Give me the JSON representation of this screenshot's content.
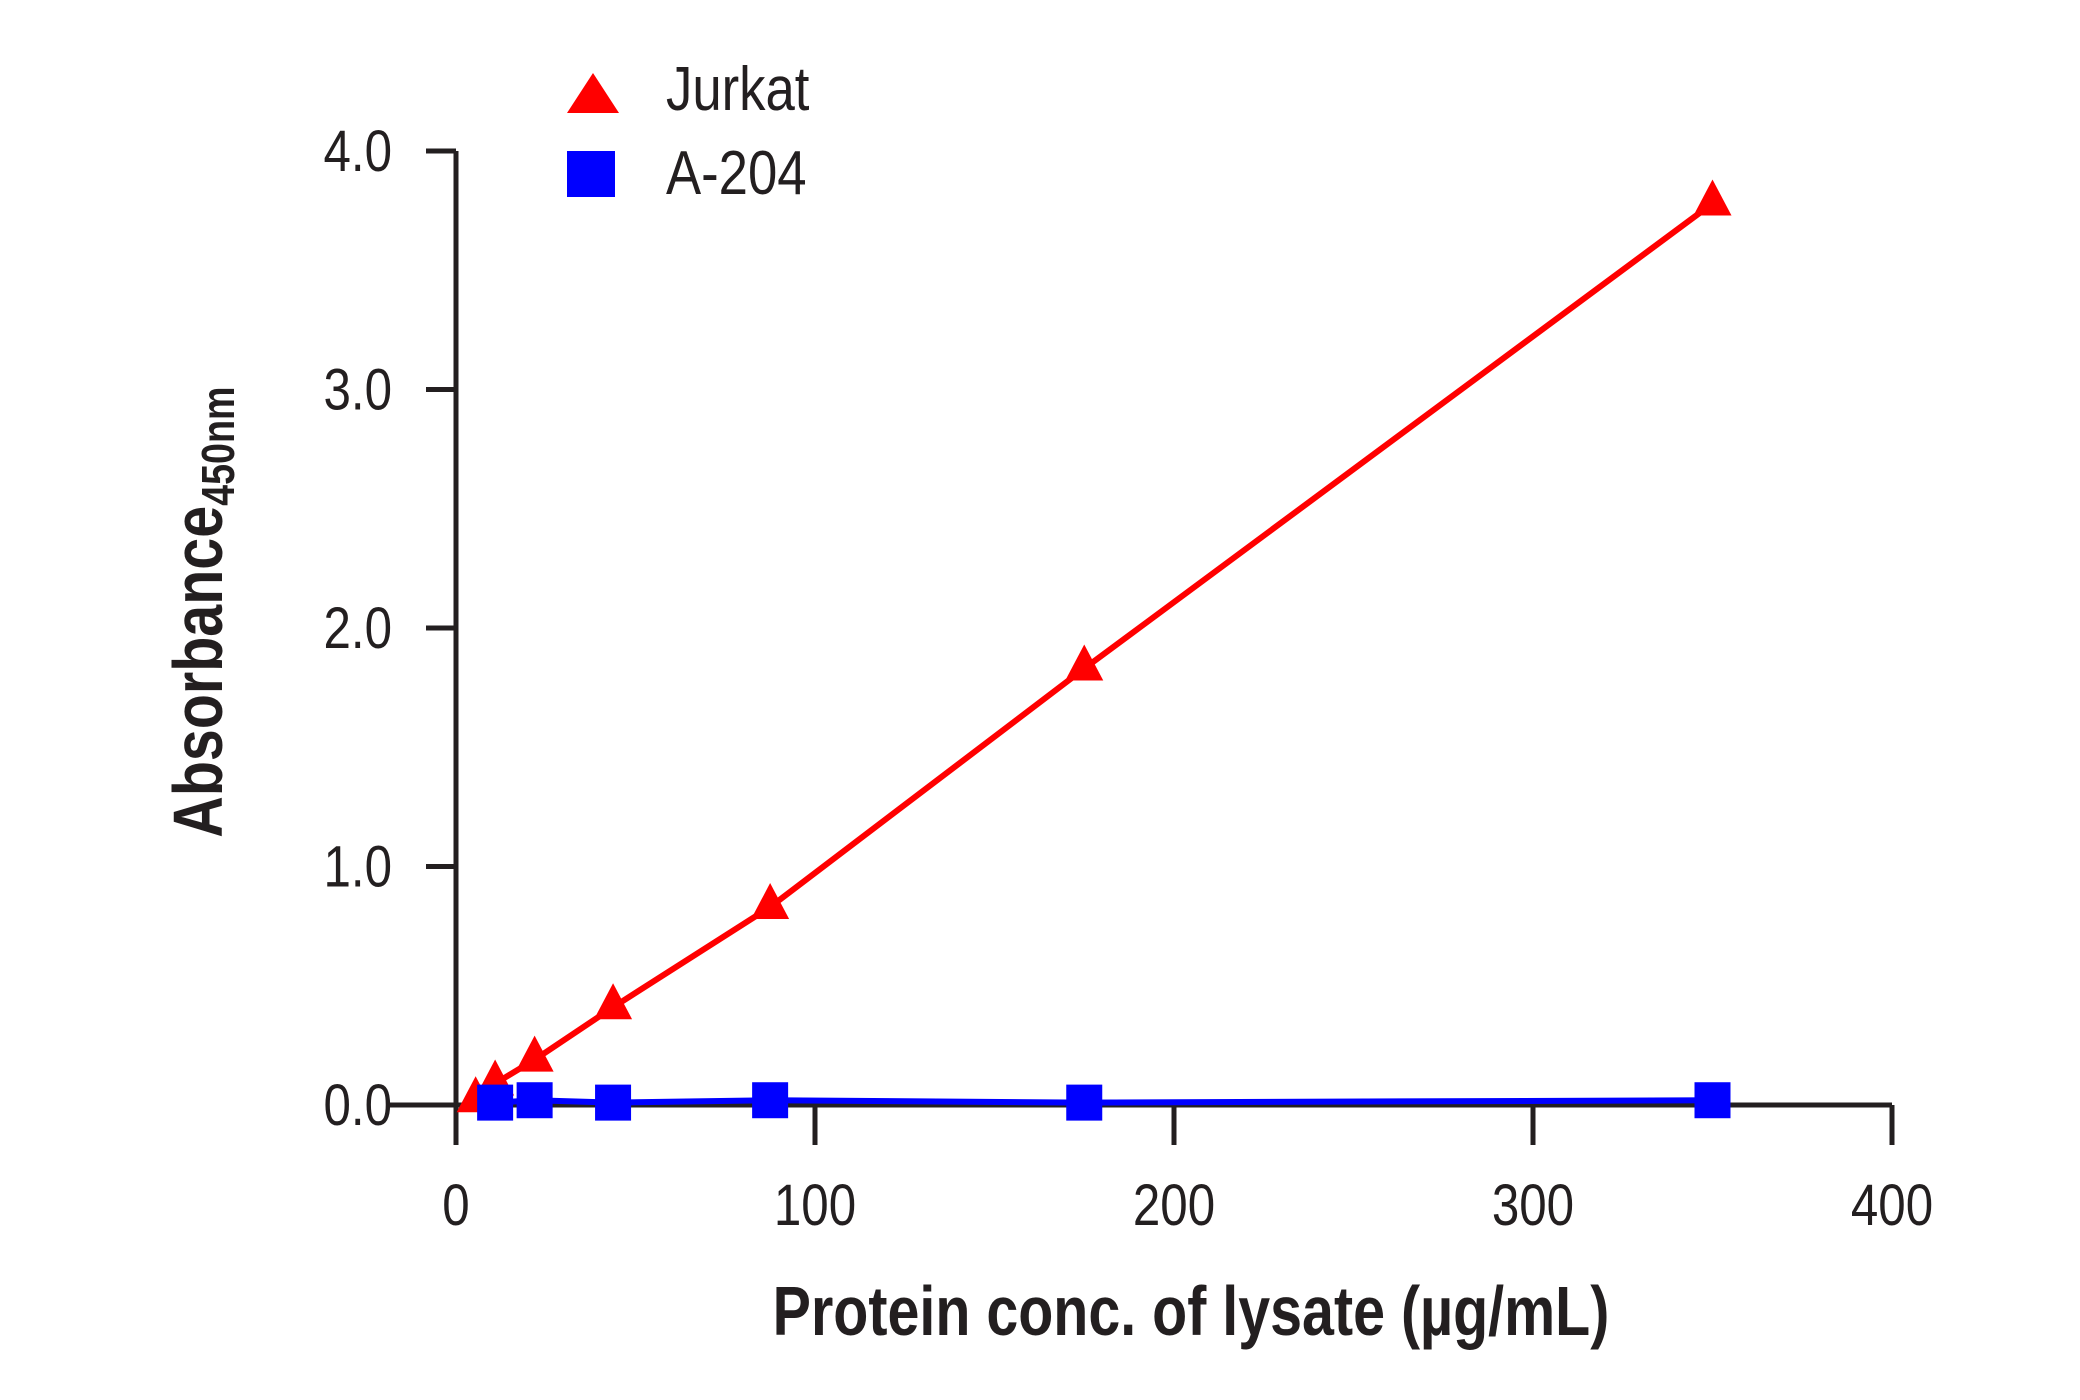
{
  "chart_data": {
    "type": "line",
    "xlabel": "Protein conc. of lysate (µg/mL)",
    "ylabel": "Absorbance",
    "ylabel_subscript": "450nm",
    "xlim": [
      0,
      400
    ],
    "ylim": [
      0,
      4.0
    ],
    "xticks": [
      "0",
      "100",
      "200",
      "300",
      "400"
    ],
    "yticks": [
      "0.0",
      "1.0",
      "2.0",
      "3.0",
      "4.0"
    ],
    "grid": false,
    "legend_position": "top-left",
    "series": [
      {
        "name": "Jurkat",
        "marker": "triangle",
        "color": "#ff0000",
        "x": [
          5.47,
          10.9,
          21.9,
          43.75,
          87.5,
          175,
          350
        ],
        "y": [
          0.02,
          0.09,
          0.19,
          0.41,
          0.83,
          1.83,
          3.78
        ]
      },
      {
        "name": "A-204",
        "marker": "square",
        "color": "#0000ff",
        "x": [
          10.9,
          21.9,
          43.75,
          87.5,
          175,
          350
        ],
        "y": [
          0.01,
          0.02,
          0.01,
          0.02,
          0.01,
          0.02
        ]
      }
    ]
  }
}
